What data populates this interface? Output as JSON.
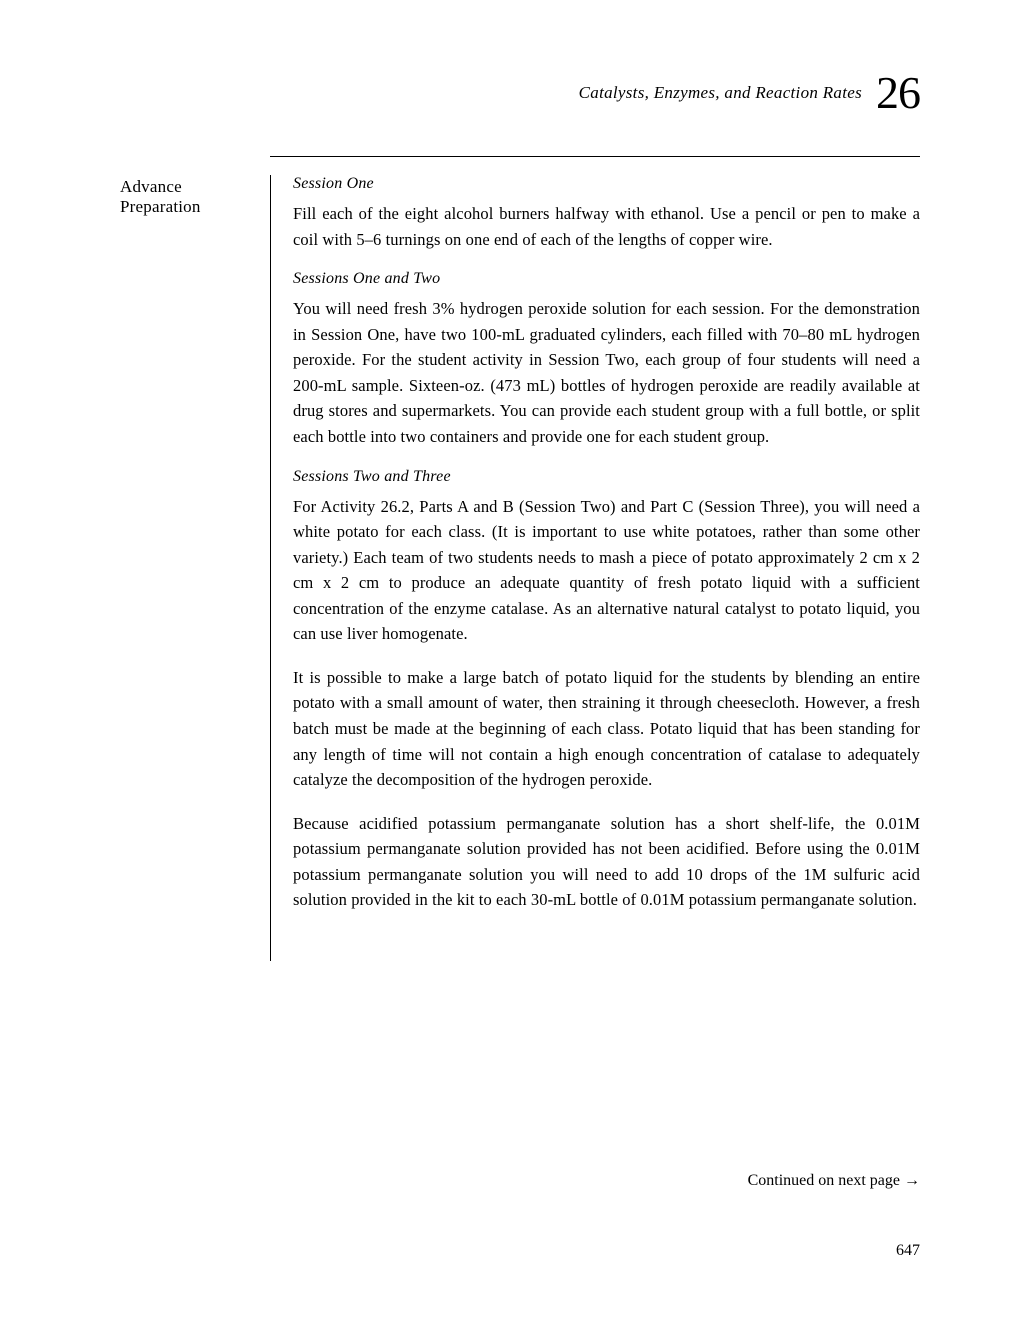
{
  "header": {
    "running_title": "Catalysts, Enzymes, and Reaction Rates",
    "chapter_number": "26"
  },
  "margin_label": "Advance Preparation",
  "sections": [
    {
      "heading": "Session One",
      "paragraphs": [
        "Fill each of the eight alcohol burners halfway with ethanol. Use a pencil or pen to make a coil with 5–6 turnings on one end of each of the lengths of copper wire."
      ]
    },
    {
      "heading": "Sessions One and Two",
      "paragraphs": [
        "You will need fresh 3% hydrogen peroxide solution for each session. For the demonstration in Session One, have two 100-mL graduated cylinders, each filled with 70–80 mL hydrogen peroxide. For the student activity in Session Two, each group of four students will need a 200-mL sample. Sixteen-oz. (473 mL) bottles of hydrogen peroxide are readily available at drug stores and supermarkets. You can provide each student group with a full bottle, or split each bottle into two containers and provide one for each student group."
      ]
    },
    {
      "heading": "Sessions Two and Three",
      "paragraphs": [
        "For Activity 26.2, Parts A and B (Session Two) and Part C (Session Three), you will need a white potato for each class. (It is important to use white potatoes, rather than some other variety.) Each team of two students needs to mash a piece of potato approximately 2 cm x 2 cm x 2 cm to produce an adequate quantity of fresh potato liquid with a sufficient concentration of the enzyme catalase. As an alternative natural catalyst to potato liquid, you can use liver homogenate.",
        "It is possible to make a large batch of potato liquid for the students by blending an entire potato with a small amount of water, then straining it through cheesecloth. However, a fresh batch must be made at the beginning of each class. Potato liquid that has been standing for any length of time will not contain a high enough concentration of catalase to adequately catalyze the decomposition of the hydrogen peroxide.",
        "Because acidified potassium permanganate solution has a short shelf-life, the 0.01M potassium permanganate solution provided has not been acidified. Before using the 0.01M potassium permanganate solution you will need to add 10 drops of the 1M sulfuric acid solution provided in the kit to each 30-mL bottle of 0.01M potassium permanganate solution."
      ]
    }
  ],
  "footer": {
    "continued": "Continued on next page →",
    "page_number": "647"
  }
}
